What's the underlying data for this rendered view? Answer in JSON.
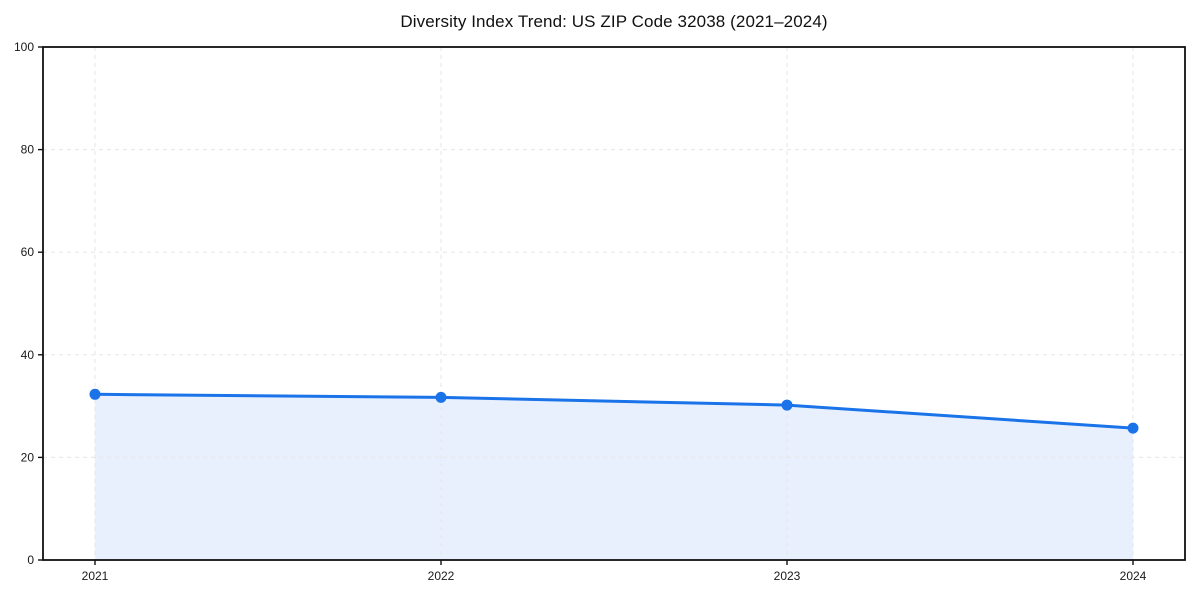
{
  "chart_data": {
    "type": "area",
    "title": "Diversity Index Trend: US ZIP Code 32038 (2021–2024)",
    "x": [
      "2021",
      "2022",
      "2023",
      "2024"
    ],
    "series": [
      {
        "name": "Diversity Index",
        "values": [
          32.3,
          31.7,
          30.2,
          25.7
        ]
      }
    ],
    "xlabel": "",
    "ylabel": "",
    "ylim": [
      0,
      100
    ],
    "yticks": [
      0,
      20,
      40,
      60,
      80,
      100
    ],
    "grid": "dashed gridlines on both axes at every tick",
    "legend": "none",
    "marker": "filled circle on each data point",
    "colors": {
      "line": "#1a73e8",
      "marker": "#1a73e8",
      "fill": "#e8f0fe",
      "grid": "#e9e9e9",
      "axis": "#111111",
      "tick_label": "#1a1a1a",
      "background": "#ffffff"
    }
  }
}
